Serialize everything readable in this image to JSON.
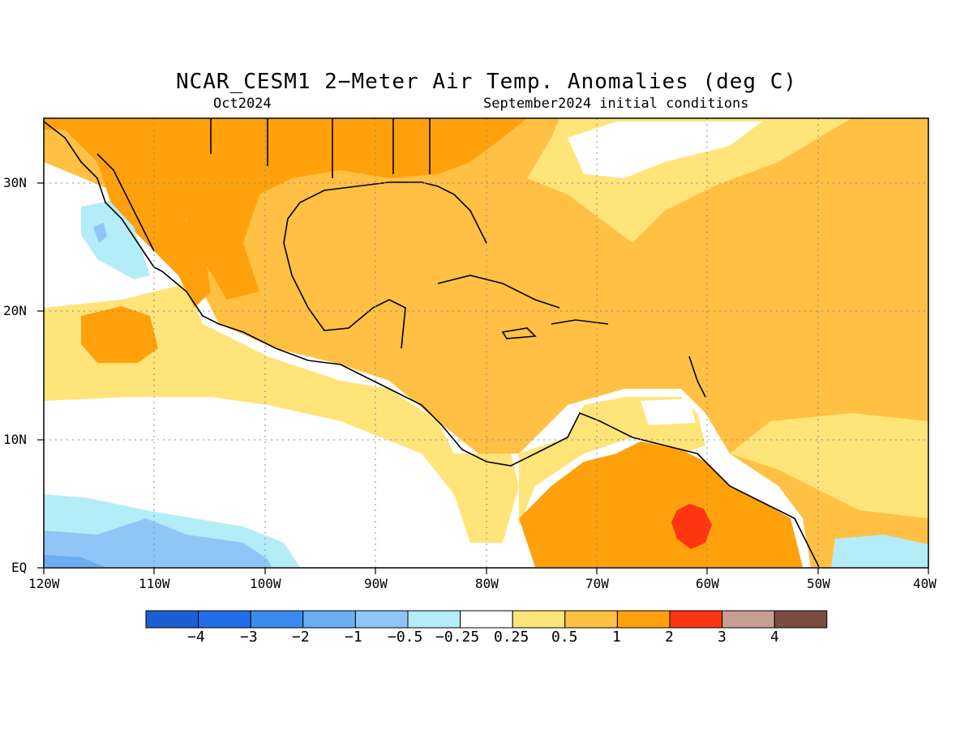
{
  "title": "NCAR_CESM1 2−Meter Air Temp. Anomalies (deg C)",
  "subtitle_left": "Oct2024",
  "subtitle_right": "September2024 initial conditions",
  "lat_labels": [
    "30N",
    "20N",
    "10N",
    "EQ"
  ],
  "lon_labels": [
    "120W",
    "110W",
    "100W",
    "90W",
    "80W",
    "70W",
    "60W",
    "50W",
    "40W"
  ],
  "colorbar": {
    "colors": [
      "#1a5fd4",
      "#236de8",
      "#3a8af0",
      "#6aadf3",
      "#90c6f7",
      "#b4ecf8",
      "#ffffff",
      "#ffe47a",
      "#ffc043",
      "#ffa10c",
      "#ff3512",
      "#c79e94",
      "#7a4d43"
    ],
    "labels": [
      "−4",
      "−3",
      "−2",
      "−1",
      "−0.5",
      "−0.25",
      "0.25",
      "0.5",
      "1",
      "2",
      "3",
      "4"
    ]
  },
  "map_extent": {
    "lon": [
      -120,
      -40
    ],
    "lat": [
      0,
      35
    ]
  }
}
